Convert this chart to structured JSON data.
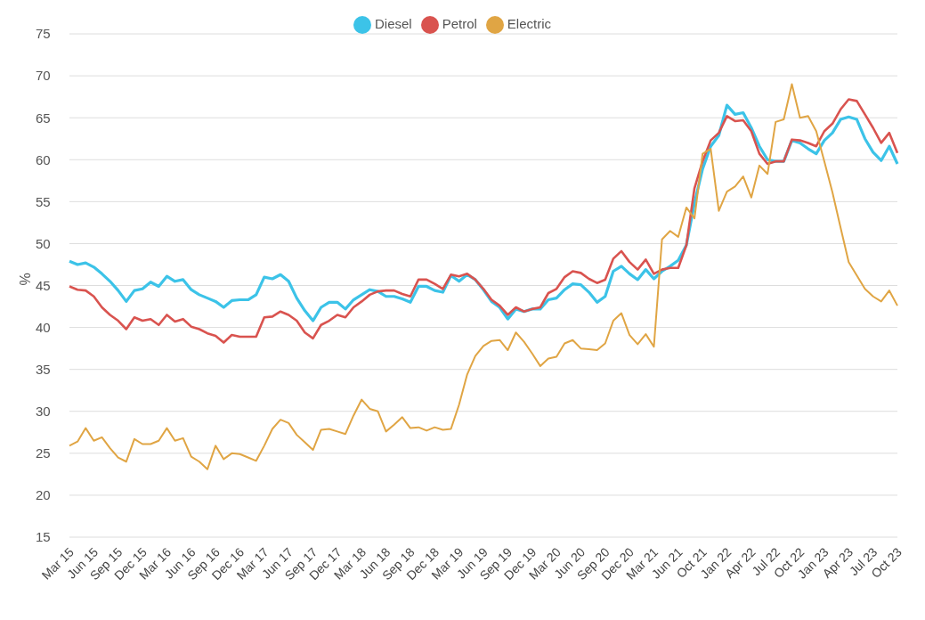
{
  "chart_data": {
    "type": "line",
    "ylabel": "%",
    "categories": [
      "Mar 15",
      null,
      null,
      "Jun 15",
      null,
      null,
      "Sep 15",
      null,
      null,
      "Dec 15",
      null,
      null,
      "Mar 16",
      null,
      null,
      "Jun 16",
      null,
      null,
      "Sep 16",
      null,
      null,
      "Dec 16",
      null,
      null,
      "Mar 17",
      null,
      null,
      "Jun 17",
      null,
      null,
      "Sep 17",
      null,
      null,
      "Dec 17",
      null,
      null,
      "Mar 18",
      null,
      null,
      "Jun 18",
      null,
      null,
      "Sep 18",
      null,
      null,
      "Dec 18",
      null,
      null,
      "Mar 19",
      null,
      null,
      "Jun 19",
      null,
      null,
      "Sep 19",
      null,
      null,
      "Dec 19",
      null,
      null,
      "Mar 20",
      null,
      null,
      "Jun 20",
      null,
      null,
      "Sep 20",
      null,
      null,
      "Dec 20",
      null,
      null,
      "Mar 21",
      null,
      null,
      "Jun 21",
      null,
      null,
      "Oct 21",
      null,
      null,
      "Jan 22",
      null,
      null,
      "Apr 22",
      null,
      null,
      "Jul 22",
      null,
      null,
      "Oct 22",
      null,
      null,
      "Jan 23",
      null,
      null,
      "Apr 23",
      null,
      null,
      "Jul 23",
      null,
      null,
      "Oct 23"
    ],
    "series": [
      {
        "name": "Diesel",
        "color": "#3cc3e8",
        "values": [
          47.9,
          47.5,
          47.7,
          47.2,
          46.4,
          45.5,
          44.4,
          43.1,
          44.4,
          44.6,
          45.4,
          44.9,
          46.1,
          45.5,
          45.7,
          44.5,
          43.9,
          43.5,
          43.1,
          42.4,
          43.2,
          43.3,
          43.3,
          43.9,
          46.0,
          45.8,
          46.3,
          45.5,
          43.5,
          42.0,
          40.8,
          42.4,
          43.0,
          43.0,
          42.2,
          43.3,
          43.9,
          44.5,
          44.3,
          43.7,
          43.7,
          43.4,
          43.0,
          44.9,
          44.9,
          44.4,
          44.2,
          46.2,
          45.5,
          46.3,
          45.7,
          44.5,
          43.1,
          42.4,
          41.0,
          42.2,
          41.9,
          42.2,
          42.2,
          43.3,
          43.5,
          44.5,
          45.2,
          45.1,
          44.2,
          43.0,
          43.7,
          46.7,
          47.3,
          46.4,
          45.7,
          46.9,
          45.8,
          46.7,
          47.3,
          48.0,
          49.8,
          54.8,
          58.9,
          61.6,
          62.9,
          66.5,
          65.4,
          65.6,
          63.8,
          61.6,
          60.0,
          59.8,
          59.8,
          62.3,
          62.0,
          61.3,
          60.7,
          62.3,
          63.2,
          64.8,
          65.1,
          64.8,
          62.5,
          60.9,
          59.9,
          61.6,
          59.5
        ]
      },
      {
        "name": "Petrol",
        "color": "#d9534f",
        "values": [
          44.9,
          44.5,
          44.4,
          43.7,
          42.4,
          41.5,
          40.8,
          39.8,
          41.2,
          40.8,
          41.0,
          40.3,
          41.5,
          40.7,
          41.0,
          40.1,
          39.8,
          39.3,
          39.0,
          38.2,
          39.1,
          38.9,
          38.9,
          38.9,
          41.2,
          41.3,
          41.9,
          41.5,
          40.8,
          39.4,
          38.7,
          40.3,
          40.8,
          41.5,
          41.2,
          42.4,
          43.1,
          43.9,
          44.3,
          44.4,
          44.4,
          44.0,
          43.7,
          45.7,
          45.7,
          45.2,
          44.6,
          46.3,
          46.1,
          46.4,
          45.7,
          44.6,
          43.3,
          42.6,
          41.5,
          42.4,
          41.9,
          42.2,
          42.4,
          44.1,
          44.6,
          46.0,
          46.7,
          46.5,
          45.8,
          45.3,
          45.7,
          48.2,
          49.1,
          47.8,
          46.9,
          48.1,
          46.4,
          46.9,
          47.1,
          47.1,
          49.8,
          56.6,
          59.8,
          62.3,
          63.2,
          65.2,
          64.6,
          64.7,
          63.4,
          60.7,
          59.5,
          59.8,
          59.8,
          62.4,
          62.3,
          62.0,
          61.6,
          63.4,
          64.3,
          66.0,
          67.2,
          67.0,
          65.4,
          63.8,
          62.0,
          63.2,
          60.8
        ]
      },
      {
        "name": "Electric",
        "color": "#e0a544",
        "values": [
          25.9,
          26.4,
          28.0,
          26.5,
          26.9,
          25.6,
          24.5,
          24.0,
          26.7,
          26.1,
          26.1,
          26.5,
          28.0,
          26.5,
          26.8,
          24.6,
          24.0,
          23.1,
          25.9,
          24.3,
          25.0,
          24.9,
          24.5,
          24.1,
          25.9,
          27.9,
          29.0,
          28.6,
          27.2,
          26.3,
          25.4,
          27.8,
          27.9,
          27.6,
          27.3,
          29.5,
          31.4,
          30.3,
          30.0,
          27.6,
          28.4,
          29.3,
          28.0,
          28.1,
          27.7,
          28.1,
          27.8,
          27.9,
          30.8,
          34.4,
          36.6,
          37.8,
          38.4,
          38.5,
          37.3,
          39.4,
          38.3,
          36.9,
          35.4,
          36.3,
          36.5,
          38.1,
          38.5,
          37.5,
          37.4,
          37.3,
          38.1,
          40.8,
          41.7,
          39.1,
          38.0,
          39.2,
          37.7,
          50.5,
          51.5,
          50.8,
          54.3,
          53.0,
          60.7,
          61.3,
          53.9,
          56.2,
          56.8,
          58.0,
          55.5,
          59.3,
          58.3,
          64.5,
          64.8,
          69.0,
          65.0,
          65.2,
          63.4,
          59.8,
          56.1,
          51.9,
          47.8,
          46.2,
          44.6,
          43.7,
          43.1,
          44.4,
          42.6
        ]
      }
    ],
    "ylim": [
      15,
      75
    ],
    "yticks": [
      15,
      20,
      25,
      30,
      35,
      40,
      45,
      50,
      55,
      60,
      65,
      70,
      75
    ],
    "grid": "y",
    "legend": "top",
    "marker": "none",
    "line_style": "solid"
  }
}
